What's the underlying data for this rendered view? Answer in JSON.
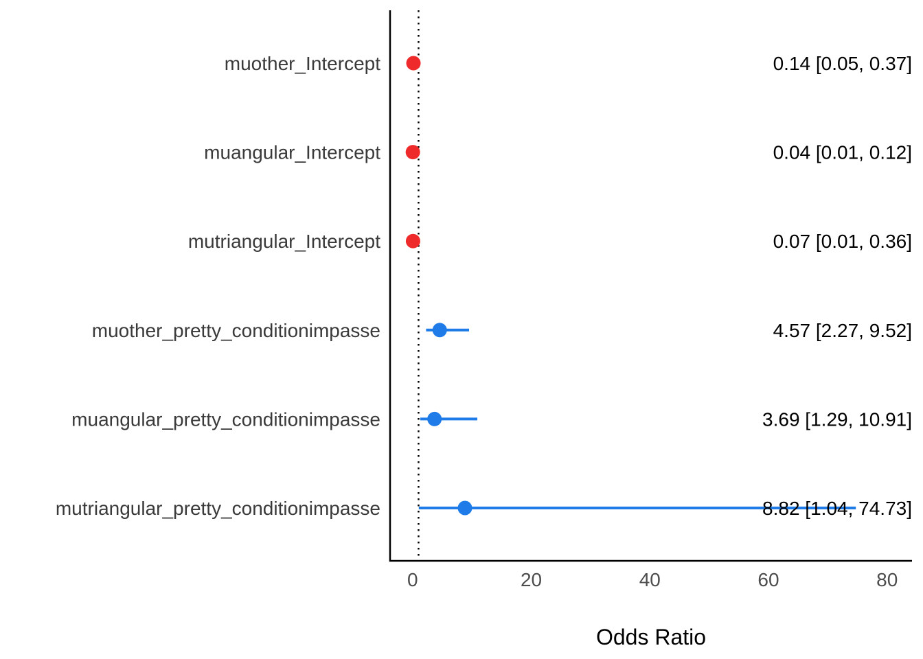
{
  "chart_data": {
    "type": "scatter",
    "subtype": "forest-plot",
    "xlabel": "Odds Ratio",
    "xlim": [
      -3.8,
      84.2
    ],
    "x_ticks": [
      0,
      20,
      40,
      60,
      80
    ],
    "reference_line": 1,
    "grid": false,
    "legend": "none",
    "colors": {
      "below_one": "#EE2A2A",
      "above_one": "#1E7BE8",
      "reference": "#000000"
    },
    "rows": [
      {
        "term": "muother_Intercept",
        "estimate": 0.14,
        "low": 0.05,
        "high": 0.37,
        "label": "0.14 [0.05, 0.37]",
        "group": "below_one"
      },
      {
        "term": "muangular_Intercept",
        "estimate": 0.04,
        "low": 0.01,
        "high": 0.12,
        "label": "0.04 [0.01, 0.12]",
        "group": "below_one"
      },
      {
        "term": "mutriangular_Intercept",
        "estimate": 0.07,
        "low": 0.01,
        "high": 0.36,
        "label": "0.07 [0.01, 0.36]",
        "group": "below_one"
      },
      {
        "term": "muother_pretty_conditionimpasse",
        "estimate": 4.57,
        "low": 2.27,
        "high": 9.52,
        "label": "4.57 [2.27, 9.52]",
        "group": "above_one"
      },
      {
        "term": "muangular_pretty_conditionimpasse",
        "estimate": 3.69,
        "low": 1.29,
        "high": 10.91,
        "label": "3.69 [1.29, 10.91]",
        "group": "above_one"
      },
      {
        "term": "mutriangular_pretty_conditionimpasse",
        "estimate": 8.82,
        "low": 1.04,
        "high": 74.73,
        "label": "8.82 [1.04, 74.73]",
        "group": "above_one"
      }
    ]
  }
}
